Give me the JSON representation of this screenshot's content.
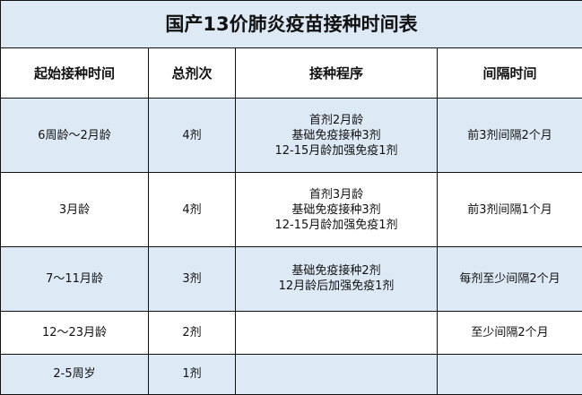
{
  "title": "国产13价肺炎疫苗接种时间表",
  "headers": [
    "起始接种时间",
    "总剂次",
    "接种程序",
    "间隔时间"
  ],
  "rows": [
    {
      "start": "6周龄～2月龄",
      "doses": "4剂",
      "schedule": [
        "首剂2月龄",
        "基础免疫接种3剂",
        "12-15月龄加强免疫1剂"
      ],
      "interval": "前3剂间隔2个月"
    },
    {
      "start": "3月龄",
      "doses": "4剂",
      "schedule": [
        "首剂3月龄",
        "基础免疫接种3剂",
        "12-15月龄加强免疫1剂"
      ],
      "interval": "前3剂间隔1个月"
    },
    {
      "start": "7～11月龄",
      "doses": "3剂",
      "schedule": [
        "基础免疫接种2剂",
        "12月龄后加强免疫1剂"
      ],
      "interval": "每剂至少间隔2个月"
    },
    {
      "start": "12～23月龄",
      "doses": "2剂",
      "schedule": [],
      "interval": "至少间隔2个月"
    },
    {
      "start": "2-5周岁",
      "doses": "1剂",
      "schedule": [],
      "interval": ""
    }
  ],
  "colors": {
    "row_highlight": "#dde9f5",
    "border": "#111111"
  }
}
